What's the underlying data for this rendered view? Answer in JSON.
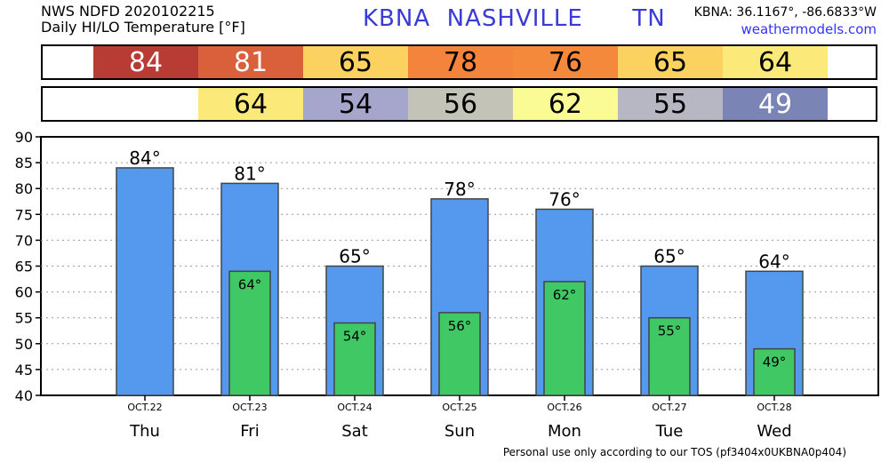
{
  "header": {
    "line1": "NWS NDFD 2020102215",
    "line2": "Daily HI/LO Temperature [°F]",
    "station": "KBNA  NASHVILLE      TN",
    "coords": "KBNA: 36.1167°, -86.6833°W",
    "link": "weathermodels.com"
  },
  "bands": {
    "hi": [
      {
        "value": "84",
        "color": "#b83b34",
        "text_color": "#ffffff"
      },
      {
        "value": "81",
        "color": "#d9603a",
        "text_color": "#ffffff"
      },
      {
        "value": "65",
        "color": "#fbd25f",
        "text_color": "#000000"
      },
      {
        "value": "78",
        "color": "#f4843b",
        "text_color": "#000000"
      },
      {
        "value": "76",
        "color": "#f4883b",
        "text_color": "#000000"
      },
      {
        "value": "65",
        "color": "#fbd25f",
        "text_color": "#000000"
      },
      {
        "value": "64",
        "color": "#fbea7a",
        "text_color": "#000000"
      }
    ],
    "lo": [
      {
        "value": "",
        "color": "#ffffff",
        "text_color": "#000000"
      },
      {
        "value": "64",
        "color": "#fbea7a",
        "text_color": "#000000"
      },
      {
        "value": "54",
        "color": "#a6a6cc",
        "text_color": "#000000"
      },
      {
        "value": "56",
        "color": "#c3c3b8",
        "text_color": "#000000"
      },
      {
        "value": "62",
        "color": "#fbfb96",
        "text_color": "#000000"
      },
      {
        "value": "55",
        "color": "#b7b7c4",
        "text_color": "#000000"
      },
      {
        "value": "49",
        "color": "#7a84b5",
        "text_color": "#ffffff"
      }
    ]
  },
  "chart_data": {
    "type": "bar",
    "categories": [
      "Thu",
      "Fri",
      "Sat",
      "Sun",
      "Mon",
      "Tue",
      "Wed"
    ],
    "dates": [
      "OCT.22",
      "OCT.23",
      "OCT.24",
      "OCT.25",
      "OCT.26",
      "OCT.27",
      "OCT.28"
    ],
    "series": [
      {
        "values": [
          84,
          81,
          65,
          78,
          76,
          65,
          64
        ],
        "color": "#5599ee"
      },
      {
        "values": [
          null,
          64,
          54,
          56,
          62,
          55,
          49
        ],
        "color": "#3fc863"
      }
    ],
    "hi_labels": [
      "84°",
      "81°",
      "65°",
      "78°",
      "76°",
      "65°",
      "64°"
    ],
    "lo_labels": [
      "",
      "64°",
      "54°",
      "56°",
      "62°",
      "55°",
      "49°"
    ],
    "ylim": [
      40,
      90
    ],
    "yticks": [
      "40",
      "45",
      "50",
      "55",
      "60",
      "65",
      "70",
      "75",
      "80",
      "85",
      "90"
    ],
    "grid": true
  },
  "footer": "Personal use only according to our TOS (pf3404x0UKBNA0p404)"
}
